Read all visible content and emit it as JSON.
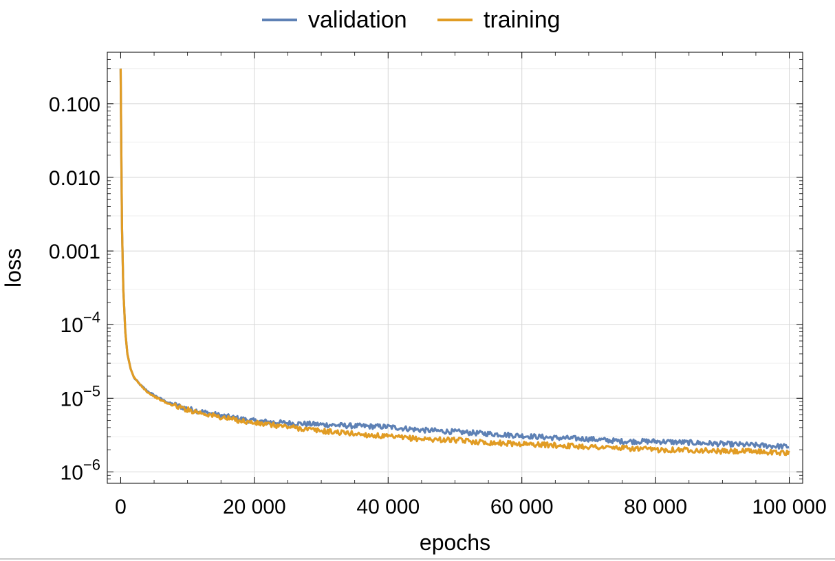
{
  "chart_data": {
    "type": "line",
    "title": "",
    "xlabel": "epochs",
    "ylabel": "loss",
    "xlim": [
      -2000,
      102000
    ],
    "ylim": [
      7e-07,
      0.5
    ],
    "y_scale": "log",
    "grid": true,
    "legend_position": "top-center",
    "x_ticks": [
      0,
      20000,
      40000,
      60000,
      80000,
      100000
    ],
    "x_tick_labels": [
      "0",
      "20 000",
      "40 000",
      "60 000",
      "80 000",
      "100 000"
    ],
    "y_ticks": [
      1e-06,
      1e-05,
      0.0001,
      0.001,
      0.01,
      0.1
    ],
    "y_tick_labels": [
      {
        "base": "10",
        "exp": "−6"
      },
      {
        "base": "10",
        "exp": "−5"
      },
      {
        "base": "10",
        "exp": "−4"
      },
      {
        "base": "0.001",
        "exp": ""
      },
      {
        "base": "0.010",
        "exp": ""
      },
      {
        "base": "0.100",
        "exp": ""
      }
    ],
    "series": [
      {
        "name": "validation",
        "color": "#5e81b5",
        "x": [
          0,
          100,
          200,
          400,
          700,
          1000,
          1500,
          2000,
          3000,
          4000,
          5000,
          7000,
          10000,
          15000,
          20000,
          25000,
          30000,
          35000,
          40000,
          45000,
          50000,
          55000,
          60000,
          65000,
          70000,
          75000,
          80000,
          85000,
          90000,
          95000,
          100000
        ],
        "values": [
          0.3,
          0.02,
          0.002,
          0.0003,
          8e-05,
          4e-05,
          2.5e-05,
          1.9e-05,
          1.5e-05,
          1.25e-05,
          1.1e-05,
          8.8e-06,
          7.2e-06,
          5.8e-06,
          4.9e-06,
          4.6e-06,
          4.4e-06,
          4.2e-06,
          4.1e-06,
          3.7e-06,
          3.5e-06,
          3.3e-06,
          3.1e-06,
          2.9e-06,
          2.8e-06,
          2.6e-06,
          2.6e-06,
          2.5e-06,
          2.4e-06,
          2.3e-06,
          2.2e-06
        ]
      },
      {
        "name": "training",
        "color": "#e19c24",
        "x": [
          0,
          100,
          200,
          400,
          700,
          1000,
          1500,
          2000,
          3000,
          4000,
          5000,
          7000,
          10000,
          15000,
          20000,
          25000,
          30000,
          35000,
          40000,
          45000,
          50000,
          55000,
          60000,
          65000,
          70000,
          75000,
          80000,
          85000,
          90000,
          95000,
          100000
        ],
        "values": [
          0.3,
          0.02,
          0.002,
          0.0003,
          8e-05,
          4e-05,
          2.5e-05,
          1.9e-05,
          1.5e-05,
          1.22e-05,
          1.06e-05,
          8.5e-06,
          7e-06,
          5.5e-06,
          4.6e-06,
          4.1e-06,
          3.6e-06,
          3.3e-06,
          3e-06,
          2.8e-06,
          2.7e-06,
          2.5e-06,
          2.4e-06,
          2.3e-06,
          2.2e-06,
          2.1e-06,
          2e-06,
          2e-06,
          1.9e-06,
          1.9e-06,
          1.8e-06
        ]
      }
    ]
  }
}
